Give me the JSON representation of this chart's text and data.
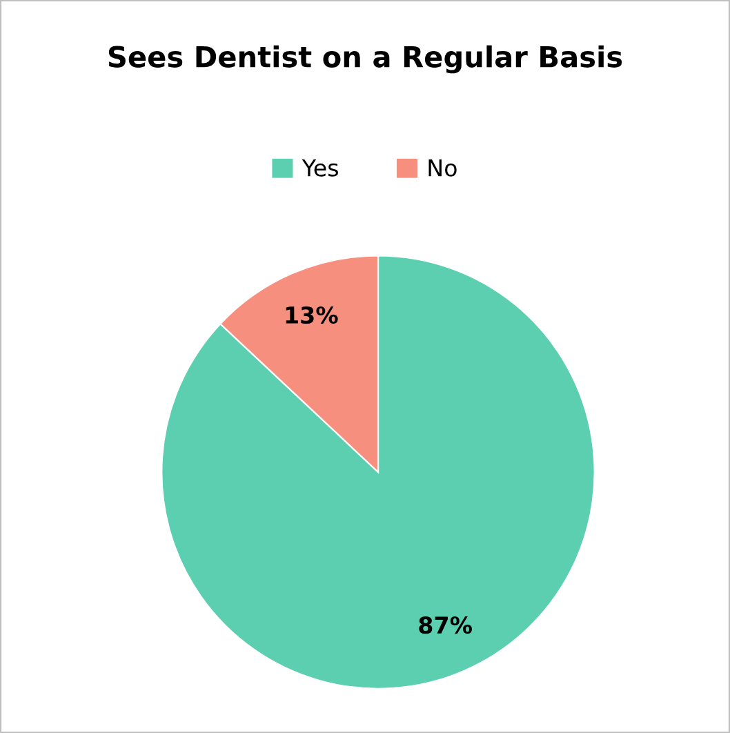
{
  "chart_data": {
    "type": "pie",
    "title": "Sees Dentist on a Regular Basis",
    "categories": [
      "Yes",
      "No"
    ],
    "values": [
      87,
      13
    ],
    "colors": [
      "#5ccfb0",
      "#f78f7e"
    ],
    "value_labels": [
      "87%",
      "13%"
    ],
    "legend": "top"
  }
}
